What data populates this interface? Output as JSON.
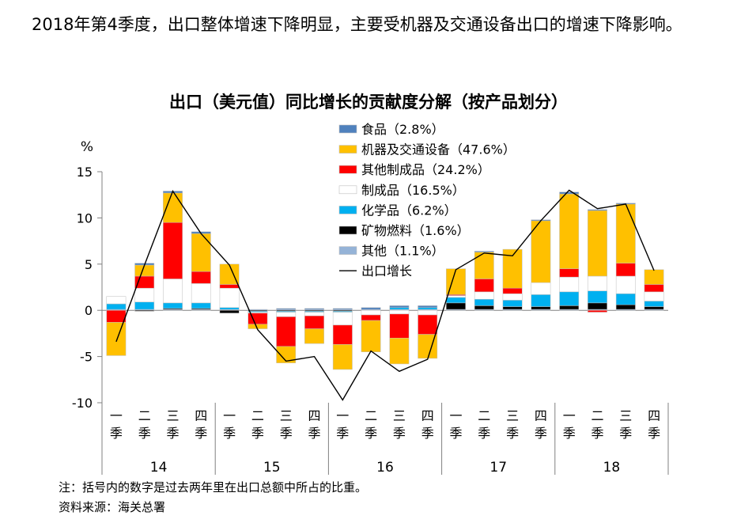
{
  "headline": "2018年第4季度，出口整体增速下降明显，主要受机器及交通设备出口的增速下降影响。",
  "footnote": {
    "note": "注：括号内的数字是过去两年里在出口总额中所占的比重。",
    "source": "资料来源：海关总署"
  },
  "chart_data": {
    "type": "bar",
    "stacked": true,
    "title": "出口（美元值）同比增长的贡献度分解（按产品划分）",
    "ylabel": "%",
    "ylim": [
      -10,
      15
    ],
    "yticks": [
      15,
      10,
      5,
      0,
      -5,
      -10
    ],
    "categories": [
      "一季",
      "二季",
      "三季",
      "四季",
      "一季",
      "二季",
      "三季",
      "四季",
      "一季",
      "二季",
      "三季",
      "四季",
      "一季",
      "二季",
      "三季",
      "四季",
      "一季",
      "二季",
      "三季",
      "四季"
    ],
    "years": [
      "14",
      "15",
      "16",
      "17",
      "18"
    ],
    "series": [
      {
        "name": "其他（1.1%）",
        "color": "#95b3d7",
        "values": [
          0.1,
          0.1,
          0.1,
          0.1,
          0.1,
          0.1,
          0.1,
          0.1,
          0.1,
          0.1,
          0.1,
          0.1,
          0.1,
          0.1,
          0.1,
          0.1,
          0.1,
          0.1,
          0.1,
          0.1
        ]
      },
      {
        "name": "矿物燃料（1.6%）",
        "color": "#000000",
        "values": [
          0,
          -0.1,
          0.1,
          0.1,
          -0.3,
          -0.1,
          -0.1,
          -0.1,
          -0.1,
          0,
          0,
          0,
          0.7,
          0.4,
          0.3,
          0.3,
          0.4,
          0.7,
          0.5,
          0.3
        ]
      },
      {
        "name": "化学品（6.2%）",
        "color": "#00b0f0",
        "values": [
          0.6,
          0.8,
          0.6,
          0.6,
          0.2,
          -0.1,
          -0.1,
          -0.1,
          -0.1,
          0,
          0.2,
          0.2,
          0.6,
          0.7,
          0.7,
          1.3,
          1.5,
          1.3,
          1.2,
          0.6
        ]
      },
      {
        "name": "制成品（16.5%）",
        "color": "#ffffff",
        "values": [
          0.8,
          1.5,
          2.6,
          2.1,
          2.1,
          -0.1,
          -0.5,
          -0.4,
          -1.4,
          -0.5,
          -0.4,
          -0.5,
          0.2,
          0.8,
          0.7,
          1.3,
          1.6,
          1.6,
          1.9,
          1.0
        ]
      },
      {
        "name": "其他制成品（24.2%）",
        "color": "#ff0000",
        "values": [
          -1.3,
          1.3,
          6.1,
          1.3,
          0.4,
          -1.2,
          -3.2,
          -1.4,
          -2.1,
          -0.6,
          -2.6,
          -2.1,
          0.1,
          1.4,
          0.6,
          0,
          0.9,
          -0.2,
          1.4,
          0.8
        ]
      },
      {
        "name": "机器及交通设备（47.6%）",
        "color": "#ffc000",
        "values": [
          -3.6,
          1.2,
          3.2,
          4.1,
          2.2,
          -0.5,
          -1.8,
          -1.6,
          -2.7,
          -3.4,
          -2.8,
          -2.6,
          2.8,
          2.9,
          4.2,
          6.7,
          8.1,
          7.1,
          6.4,
          1.6
        ]
      },
      {
        "name": "食品（2.8%）",
        "color": "#4f81bd",
        "values": [
          0,
          0.2,
          0.2,
          0.2,
          0,
          0,
          0.1,
          0.1,
          0.1,
          0.2,
          0.2,
          0.2,
          0,
          0.1,
          0,
          0.1,
          0.2,
          0.1,
          0.1,
          0
        ]
      }
    ],
    "line": {
      "name": "出口增长",
      "color": "#000000",
      "values": [
        -3.4,
        4.9,
        12.9,
        8.3,
        4.9,
        -2.1,
        -5.5,
        -5.0,
        -9.7,
        -4.4,
        -6.6,
        -5.3,
        4.4,
        6.2,
        5.9,
        9.7,
        13.0,
        11.0,
        11.5,
        4.3
      ]
    },
    "legend": {
      "position": "top-right",
      "items": [
        "食品（2.8%）",
        "机器及交通设备（47.6%）",
        "其他制成品（24.2%）",
        "制成品（16.5%）",
        "化学品（6.2%）",
        "矿物燃料（1.6%）",
        "其他（1.1%）",
        "出口增长"
      ],
      "colors": [
        "#4f81bd",
        "#ffc000",
        "#ff0000",
        "#ffffff",
        "#00b0f0",
        "#000000",
        "#95b3d7",
        "#000000"
      ]
    }
  }
}
